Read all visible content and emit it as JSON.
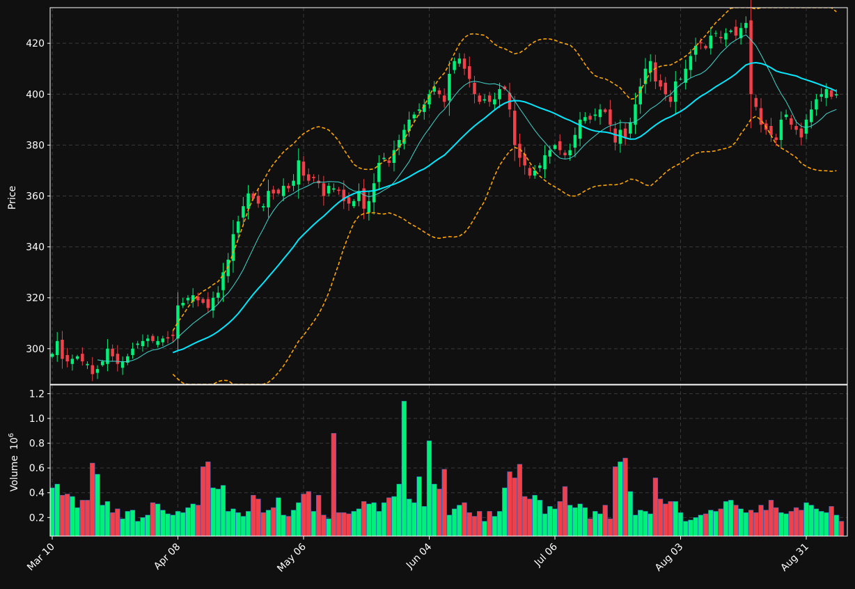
{
  "theme": {
    "background": "#101010",
    "frame": "#ffffff",
    "grid": "#3a3a3a",
    "up": "#00f07a",
    "down": "#f0404a",
    "sma_fast": "#40d8d0",
    "sma_slow": "#00e8ff",
    "bands": "#ffa500",
    "text": "#ffffff"
  },
  "chart_data": {
    "type": "candlestick",
    "price_panel": {
      "ylabel": "Price",
      "ylim": [
        286,
        434
      ],
      "yticks": [
        300,
        320,
        340,
        360,
        380,
        400,
        420
      ]
    },
    "volume_panel": {
      "ylabel": "Volume",
      "ylabel_exponent": "10",
      "ylabel_power": "6",
      "ylim": [
        0.05,
        1.27
      ],
      "yticks": [
        0.2,
        0.4,
        0.6,
        0.8,
        1.0,
        1.2
      ],
      "ytick_labels": [
        "0.2",
        "0.4",
        "0.6",
        "0.8",
        "1.0",
        "1.2"
      ]
    },
    "grid": true,
    "x_ticks": [
      {
        "index": 0,
        "label": "Mar 10"
      },
      {
        "index": 25,
        "label": "Apr 08"
      },
      {
        "index": 50,
        "label": "May 06"
      },
      {
        "index": 75,
        "label": "Jun 04"
      },
      {
        "index": 100,
        "label": "Jul 06"
      },
      {
        "index": 125,
        "label": "Aug 03"
      },
      {
        "index": 150,
        "label": "Aug 31"
      }
    ],
    "overlays": [
      {
        "kind": "sma",
        "period": 10
      },
      {
        "kind": "sma",
        "period": 25
      },
      {
        "kind": "bollinger",
        "period": 25,
        "stdev": 2
      }
    ],
    "closes": [
      298,
      303,
      296,
      295,
      296,
      297,
      295,
      294,
      290,
      292,
      295,
      300,
      297,
      294,
      295,
      297,
      300,
      302,
      303,
      304,
      303,
      303,
      304,
      304,
      305,
      317,
      318,
      320,
      321,
      319,
      318,
      316,
      320,
      322,
      330,
      335,
      345,
      350,
      356,
      361,
      359,
      357,
      356,
      362,
      361,
      361,
      364,
      363,
      366,
      374,
      368,
      366,
      367,
      365,
      360,
      364,
      363,
      362,
      358,
      357,
      358,
      362,
      355,
      358,
      365,
      373,
      375,
      373,
      378,
      382,
      386,
      390,
      392,
      394,
      396,
      400,
      403,
      400,
      397,
      408,
      413,
      414,
      410,
      406,
      400,
      397,
      398,
      397,
      398,
      402,
      402,
      394,
      380,
      375,
      372,
      368,
      370,
      372,
      376,
      378,
      380,
      378,
      376,
      378,
      384,
      390,
      391,
      390,
      392,
      394,
      393,
      388,
      381,
      386,
      383,
      389,
      396,
      403,
      410,
      413,
      405,
      403,
      400,
      397,
      405,
      406,
      410,
      415,
      419,
      420,
      418,
      423,
      424,
      422,
      424,
      425,
      423,
      426,
      428,
      400,
      395,
      388,
      386,
      384,
      382,
      390,
      392,
      388,
      386,
      383,
      390,
      394,
      398,
      400,
      402,
      399,
      400
    ],
    "volume": [
      0.44,
      0.47,
      0.38,
      0.39,
      0.37,
      0.28,
      0.34,
      0.34,
      0.64,
      0.55,
      0.3,
      0.33,
      0.24,
      0.27,
      0.19,
      0.25,
      0.26,
      0.17,
      0.2,
      0.22,
      0.32,
      0.31,
      0.26,
      0.23,
      0.22,
      0.25,
      0.24,
      0.28,
      0.31,
      0.3,
      0.61,
      0.65,
      0.44,
      0.43,
      0.46,
      0.25,
      0.27,
      0.24,
      0.21,
      0.25,
      0.38,
      0.35,
      0.24,
      0.26,
      0.28,
      0.36,
      0.22,
      0.21,
      0.26,
      0.32,
      0.39,
      0.41,
      0.25,
      0.38,
      0.22,
      0.19,
      0.88,
      0.24,
      0.24,
      0.23,
      0.25,
      0.27,
      0.33,
      0.31,
      0.32,
      0.25,
      0.32,
      0.36,
      0.37,
      0.47,
      1.14,
      0.35,
      0.32,
      0.53,
      0.29,
      0.82,
      0.47,
      0.43,
      0.59,
      0.22,
      0.27,
      0.3,
      0.32,
      0.24,
      0.21,
      0.25,
      0.17,
      0.25,
      0.21,
      0.25,
      0.44,
      0.57,
      0.52,
      0.63,
      0.37,
      0.35,
      0.38,
      0.34,
      0.23,
      0.29,
      0.27,
      0.33,
      0.45,
      0.3,
      0.28,
      0.31,
      0.28,
      0.19,
      0.25,
      0.23,
      0.3,
      0.19,
      0.61,
      0.65,
      0.68,
      0.41,
      0.22,
      0.26,
      0.25,
      0.23,
      0.52,
      0.35,
      0.31,
      0.33,
      0.33,
      0.24,
      0.17,
      0.18,
      0.2,
      0.22,
      0.23,
      0.26,
      0.25,
      0.27,
      0.33,
      0.34,
      0.3,
      0.27,
      0.24,
      0.26,
      0.24,
      0.3,
      0.26,
      0.34,
      0.28,
      0.24,
      0.23,
      0.25,
      0.28,
      0.26,
      0.32,
      0.3,
      0.27,
      0.25,
      0.24,
      0.29,
      0.22,
      0.17
    ]
  }
}
